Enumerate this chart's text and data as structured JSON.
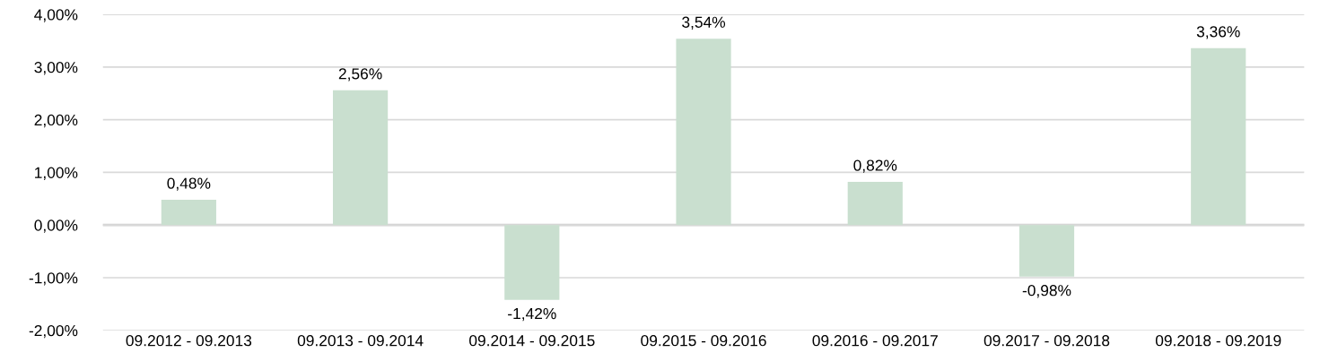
{
  "chart_data": {
    "type": "bar",
    "categories": [
      "09.2012 - 09.2013",
      "09.2013 - 09.2014",
      "09.2014 - 09.2015",
      "09.2015 - 09.2016",
      "09.2016 - 09.2017",
      "09.2017 - 09.2018",
      "09.2018 - 09.2019"
    ],
    "values": [
      0.48,
      2.56,
      -1.42,
      3.54,
      0.82,
      -0.98,
      3.36
    ],
    "color": "#c9dfcf",
    "value_labels": [
      "0,48%",
      "2,56%",
      "-1,42%",
      "3,54%",
      "0,82%",
      "-0,98%",
      "3,36%"
    ],
    "ylim": [
      -2,
      4
    ],
    "yticks": [
      {
        "value": -2,
        "label": "-2,00%"
      },
      {
        "value": -1,
        "label": "-1,00%"
      },
      {
        "value": 0,
        "label": "0,00%"
      },
      {
        "value": 1,
        "label": "1,00%"
      },
      {
        "value": 2,
        "label": "2,00%"
      },
      {
        "value": 3,
        "label": "3,00%"
      },
      {
        "value": 4,
        "label": "4,00%"
      }
    ],
    "grid": "y",
    "legend": false
  }
}
